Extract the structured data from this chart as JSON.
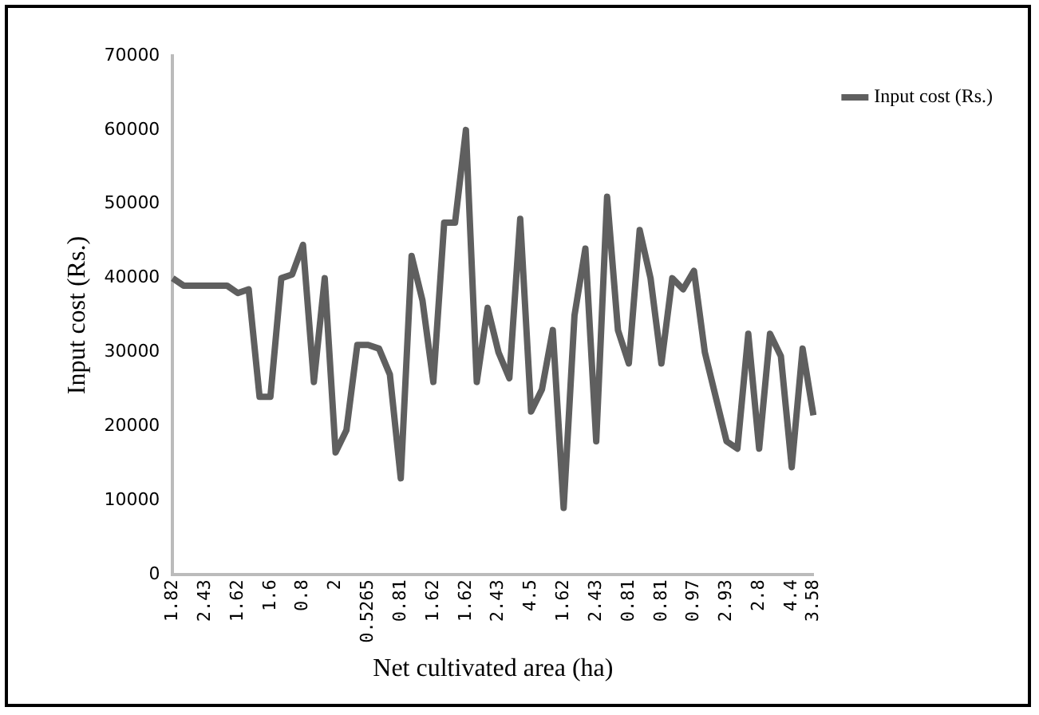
{
  "chart_data": {
    "type": "line",
    "xlabel": "Net cultivated area (ha)",
    "ylabel": "Input cost (Rs.)",
    "categories": [
      "1.82",
      null,
      null,
      "2.43",
      null,
      null,
      "1.62",
      null,
      null,
      "1.6",
      null,
      null,
      "0.8",
      null,
      null,
      "2",
      null,
      null,
      "0.5265",
      null,
      null,
      "0.81",
      null,
      null,
      "1.62",
      null,
      null,
      "1.62",
      null,
      null,
      "2.43",
      null,
      null,
      "4.5",
      null,
      null,
      "1.62",
      null,
      null,
      "2.43",
      null,
      null,
      "0.81",
      null,
      null,
      "0.81",
      null,
      null,
      "0.97",
      null,
      null,
      "2.93",
      null,
      null,
      "2.8",
      null,
      null,
      "4.4",
      null,
      "3.58"
    ],
    "series": [
      {
        "name": "Input cost (Rs.)",
        "color": "#5f5f5f",
        "values": [
          40000,
          39000,
          39000,
          39000,
          39000,
          39000,
          38000,
          38500,
          24000,
          24000,
          40000,
          40500,
          44500,
          26000,
          40000,
          16500,
          19500,
          31000,
          31000,
          30500,
          27000,
          13000,
          43000,
          37000,
          26000,
          47500,
          47500,
          60000,
          26000,
          36000,
          30000,
          26500,
          48000,
          22000,
          25000,
          33000,
          9000,
          35000,
          44000,
          18000,
          51000,
          33000,
          28500,
          46500,
          40000,
          28500,
          40000,
          38500,
          41000,
          30000,
          24000,
          18000,
          17000,
          32500,
          17000,
          32500,
          29500,
          14500,
          30500,
          21500
        ]
      }
    ],
    "ylim": [
      0,
      70000
    ],
    "yticks": [
      0,
      10000,
      20000,
      30000,
      40000,
      50000,
      60000,
      70000
    ],
    "grid": false,
    "legend": "right",
    "marker": "none",
    "line_style": "solid"
  }
}
